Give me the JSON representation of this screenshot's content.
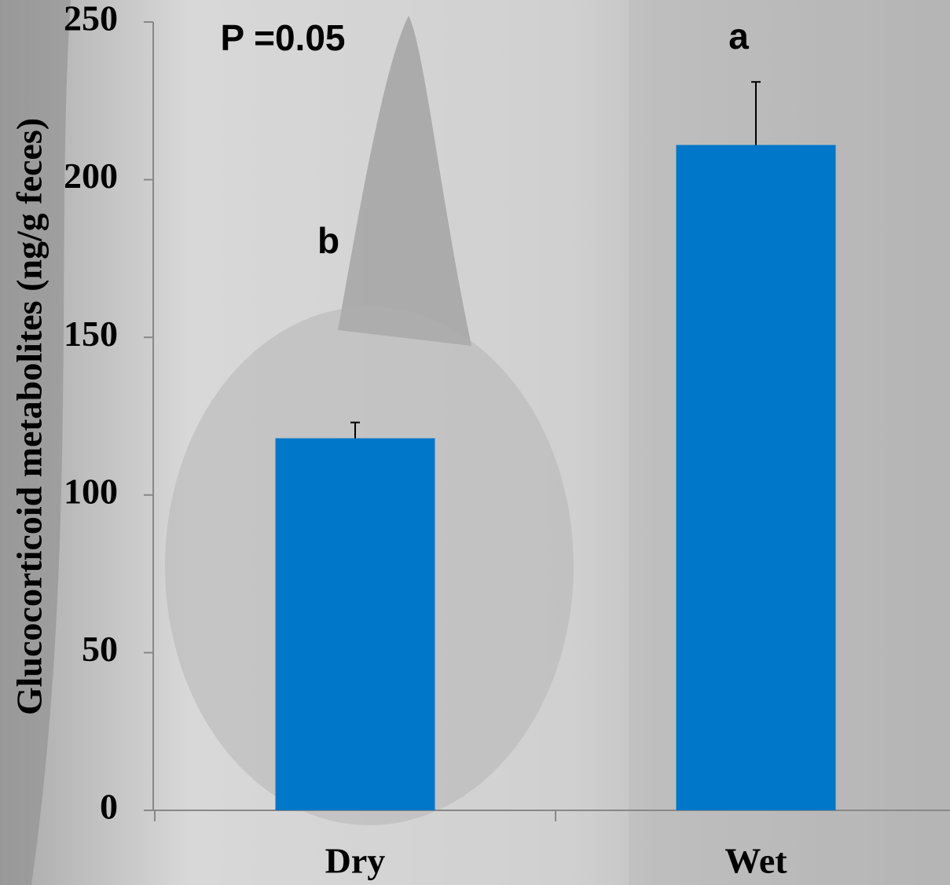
{
  "chart_data": {
    "type": "bar",
    "ylabel": "Glucocorticoid metabolites (ng/g feces)",
    "categories": [
      "Dry",
      "Wet"
    ],
    "values": [
      118,
      211
    ],
    "errors": [
      5,
      20
    ],
    "significance_letters": [
      "b",
      "a"
    ],
    "annotation": "P =0.05",
    "color": "#0077c8",
    "ylim": [
      0,
      250
    ],
    "yticks": [
      0,
      50,
      100,
      150,
      200,
      250
    ]
  }
}
